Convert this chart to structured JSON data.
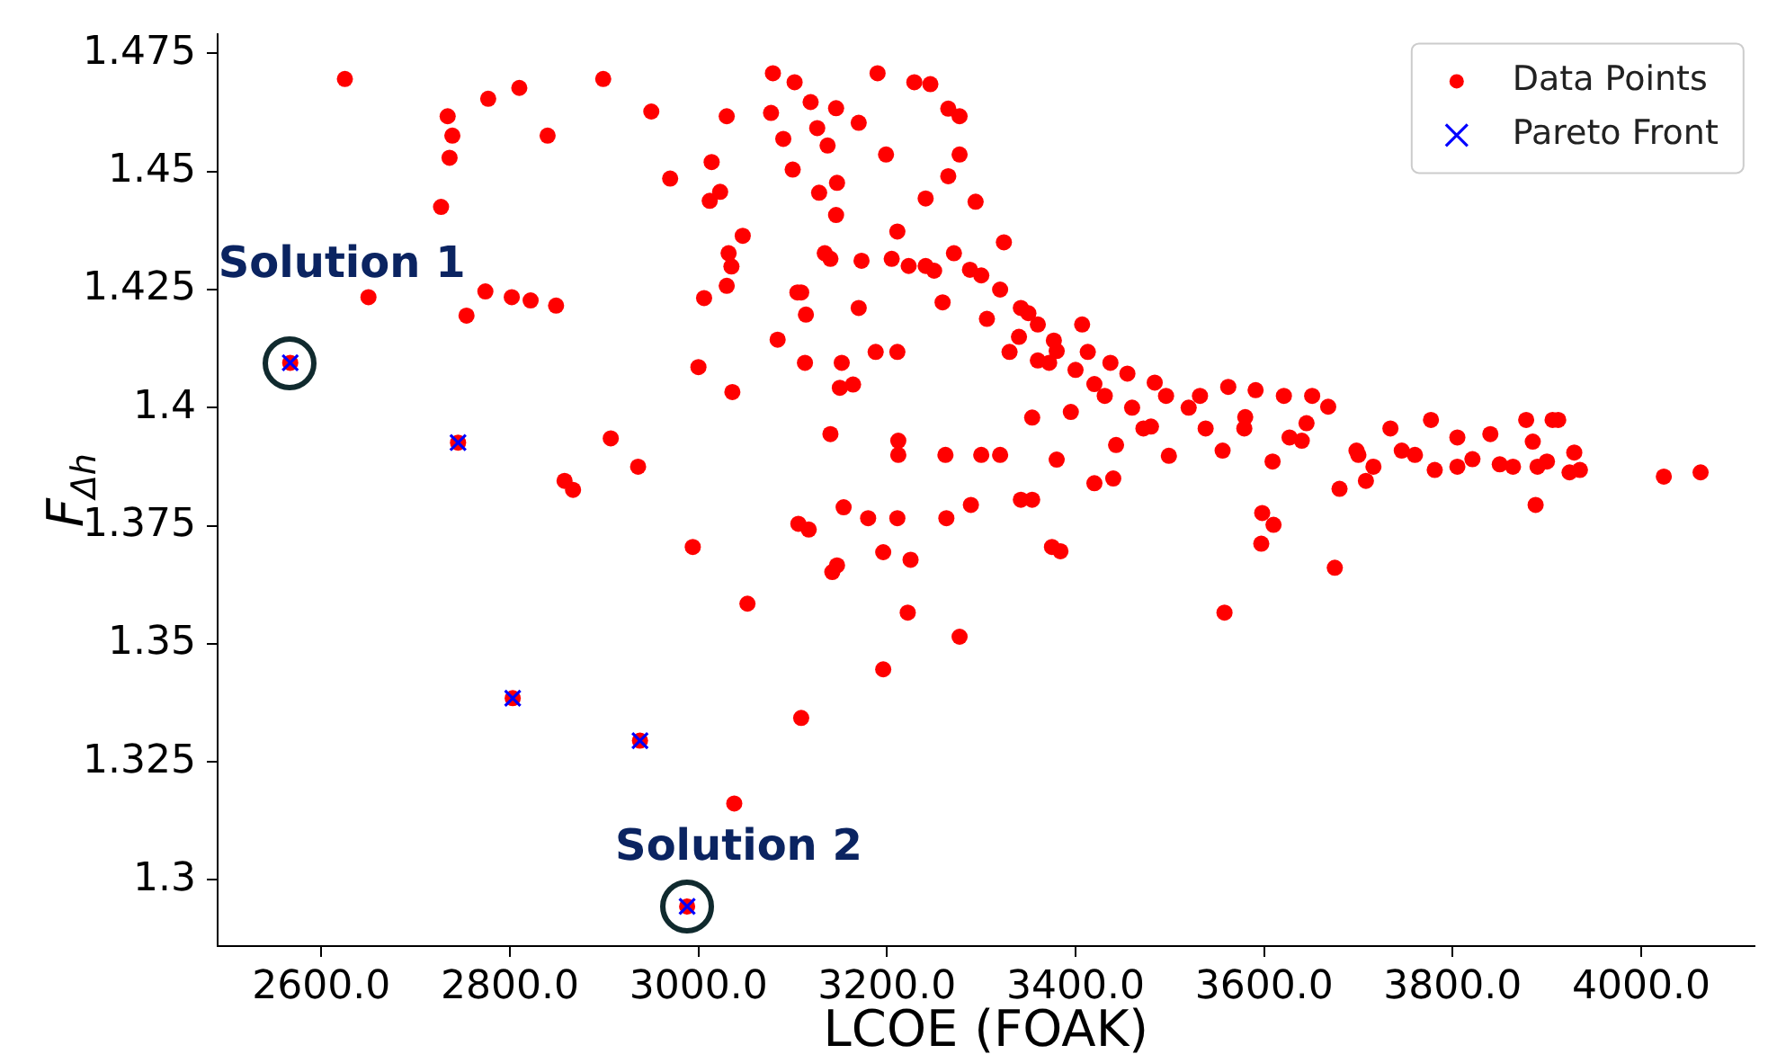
{
  "chart_data": {
    "type": "scatter",
    "xlabel": "LCOE (FOAK)",
    "ylabel": "F$_{Δh}$",
    "xlim": [
      2490,
      4120
    ],
    "ylim": [
      1.286,
      1.479
    ],
    "xticks": [
      {
        "value": 2600,
        "label": "2600.0"
      },
      {
        "value": 2800,
        "label": "2800.0"
      },
      {
        "value": 3000,
        "label": "3000.0"
      },
      {
        "value": 3200,
        "label": "3200.0"
      },
      {
        "value": 3400,
        "label": "3400.0"
      },
      {
        "value": 3600,
        "label": "3600.0"
      },
      {
        "value": 3800,
        "label": "3800.0"
      },
      {
        "value": 4000,
        "label": "4000.0"
      }
    ],
    "yticks": [
      1.3,
      1.325,
      1.35,
      1.375,
      1.4,
      1.425,
      1.45,
      1.475
    ],
    "grid": false,
    "legend": "top right",
    "annotations": [
      {
        "text": "Solution 1",
        "x": 2567,
        "y": 1.4095
      },
      {
        "text": "Solution 2",
        "x": 2988,
        "y": 1.2944
      }
    ],
    "series": [
      {
        "name": "Data Points",
        "color": "#ff0000",
        "marker": "circle",
        "x": [
          2567,
          2745,
          2803,
          2938,
          2988,
          2625,
          2650,
          2727,
          2734,
          2739,
          2736,
          2754,
          2774,
          2777,
          2802,
          2810,
          2822,
          2840,
          2849,
          2858,
          2867,
          2899,
          2907,
          2936,
          2950,
          2970,
          2994,
          3000,
          3006,
          3012,
          3014,
          3023,
          3030,
          3030,
          3035,
          3032,
          3036,
          3038,
          3047,
          3052,
          3079,
          3077,
          3084,
          3090,
          3102,
          3100,
          3105,
          3109,
          3106,
          3117,
          3109,
          3113,
          3114,
          3119,
          3126,
          3134,
          3137,
          3140,
          3142,
          3147,
          3146,
          3147,
          3150,
          3154,
          3170,
          3180,
          3190,
          3196,
          3196,
          3211,
          3222,
          3225,
          3229,
          3246,
          3263,
          3277,
          3289,
          3342,
          3354,
          3375,
          3384,
          3558,
          3598,
          3610,
          3597,
          3675,
          3888,
          4024,
          4063,
          3777,
          3805,
          3840,
          3878,
          3906,
          3912,
          3885,
          3900,
          3929,
          3935,
          3924,
          3890,
          3864,
          3821,
          3805,
          3781,
          3734,
          3746,
          3716,
          3698,
          3708,
          3680,
          3668,
          3651,
          3645,
          3621,
          3627,
          3591,
          3609,
          3579,
          3562,
          3556,
          3532,
          3538,
          3496,
          3499,
          3484,
          3472,
          3455,
          3443,
          3431,
          3437,
          3413,
          3407,
          3395,
          3377,
          3372,
          3360,
          3354,
          3342,
          3330,
          3324,
          3306,
          3294,
          3288,
          3271,
          3259,
          3241,
          3223,
          3211,
          3205,
          3188,
          3173,
          3164,
          3170,
          3152,
          3140,
          3128,
          3277,
          3277,
          3265,
          3199,
          3211,
          3146,
          3241,
          3265,
          3320,
          3340,
          3360,
          3400,
          3420,
          3460,
          3520,
          3580,
          3300,
          3250,
          3350,
          3380,
          3480,
          3640,
          3700,
          3760,
          3850,
          3212,
          3212,
          3262,
          3300,
          3320,
          3420,
          3440,
          3380
        ],
        "values": [
          1.4095,
          1.3926,
          1.3385,
          1.3295,
          1.2944,
          1.4696,
          1.4234,
          1.4425,
          1.4617,
          1.4576,
          1.4529,
          1.4195,
          1.4246,
          1.4654,
          1.4234,
          1.4677,
          1.4227,
          1.4576,
          1.4216,
          1.3845,
          1.3826,
          1.4696,
          1.3935,
          1.3875,
          1.4627,
          1.4485,
          1.3705,
          1.4086,
          1.4232,
          1.4438,
          1.452,
          1.4457,
          1.4617,
          1.4258,
          1.4299,
          1.4327,
          1.4033,
          1.3162,
          1.4364,
          1.3585,
          1.4708,
          1.4624,
          1.4144,
          1.4569,
          1.4689,
          1.4504,
          1.4244,
          1.4244,
          1.3754,
          1.3742,
          1.3343,
          1.4095,
          1.4197,
          1.4647,
          1.4592,
          1.4327,
          1.4555,
          1.3944,
          1.3652,
          1.3666,
          1.4634,
          1.4476,
          1.4042,
          1.3789,
          1.4603,
          1.3766,
          1.4708,
          1.3694,
          1.3446,
          1.3766,
          1.3566,
          1.3678,
          1.4689,
          1.4685,
          1.3766,
          1.3515,
          1.3794,
          1.3805,
          1.3805,
          1.3705,
          1.3696,
          1.3566,
          1.3777,
          1.3752,
          1.3712,
          1.3661,
          1.3794,
          1.3854,
          1.3863,
          1.3974,
          1.3937,
          1.3944,
          1.3974,
          1.3974,
          1.3974,
          1.3928,
          1.3886,
          1.3905,
          1.3868,
          1.3863,
          1.3875,
          1.3875,
          1.3891,
          1.3875,
          1.3868,
          1.3956,
          1.3909,
          1.3875,
          1.3909,
          1.3845,
          1.3828,
          1.4002,
          1.4025,
          1.3967,
          1.4025,
          1.3937,
          1.4037,
          1.3886,
          1.3956,
          1.4044,
          1.3909,
          1.4025,
          1.3956,
          1.4025,
          1.3898,
          1.4053,
          1.3956,
          1.4072,
          1.3921,
          1.4025,
          1.4095,
          1.4118,
          1.4176,
          1.3991,
          1.4142,
          1.4095,
          1.4176,
          1.3979,
          1.4211,
          1.4118,
          1.435,
          1.4188,
          1.4436,
          1.4292,
          1.4327,
          1.4223,
          1.43,
          1.43,
          1.4118,
          1.4315,
          1.4118,
          1.4311,
          1.4049,
          1.4211,
          1.4095,
          1.4315,
          1.4455,
          1.4536,
          1.4617,
          1.4633,
          1.4536,
          1.4373,
          1.4408,
          1.4443,
          1.449,
          1.425,
          1.415,
          1.41,
          1.408,
          1.405,
          1.4,
          1.4,
          1.398,
          1.428,
          1.429,
          1.42,
          1.412,
          1.396,
          1.393,
          1.39,
          1.39,
          1.388,
          1.393,
          1.39,
          1.39,
          1.39,
          1.39,
          1.384,
          1.385,
          1.389
        ]
      },
      {
        "name": "Pareto Front",
        "color": "#0000ff",
        "marker": "cross",
        "x": [
          2567,
          2745,
          2803,
          2938,
          2988
        ],
        "values": [
          1.4095,
          1.3926,
          1.3385,
          1.3295,
          1.2944
        ]
      }
    ]
  }
}
